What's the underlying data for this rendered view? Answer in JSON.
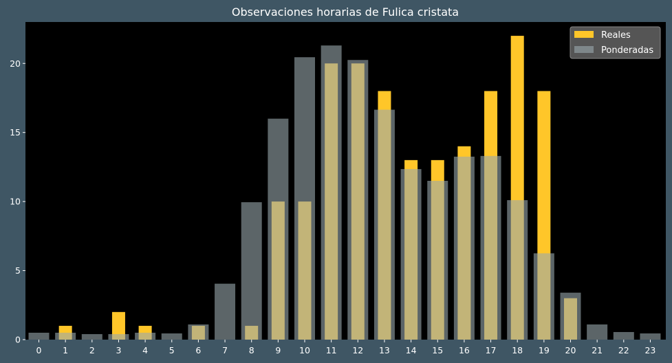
{
  "chart_data": {
    "type": "bar",
    "title": "Observaciones horarias de Fulica cristata",
    "xlabel": "",
    "ylabel": "",
    "categories": [
      "0",
      "1",
      "2",
      "3",
      "4",
      "5",
      "6",
      "7",
      "8",
      "9",
      "10",
      "11",
      "12",
      "13",
      "14",
      "15",
      "16",
      "17",
      "18",
      "19",
      "20",
      "21",
      "22",
      "23"
    ],
    "series": [
      {
        "name": "Reales",
        "color": "#ffc629",
        "values": [
          0,
          1,
          0,
          2,
          1,
          0,
          1,
          0,
          1,
          10,
          10,
          20,
          20,
          18,
          13,
          13,
          14,
          18,
          22,
          18,
          3,
          0,
          0,
          0
        ]
      },
      {
        "name": "Ponderadas",
        "color": "#9aa8ad",
        "values": [
          0.5,
          0.5,
          0.4,
          0.4,
          0.5,
          0.45,
          1.1,
          4.05,
          9.95,
          16.0,
          20.45,
          21.3,
          20.25,
          16.65,
          12.35,
          11.5,
          13.25,
          13.3,
          10.1,
          6.25,
          3.4,
          1.1,
          0.55,
          0.45
        ]
      }
    ],
    "ylim": [
      0,
      23
    ],
    "yticks": [
      0,
      5,
      10,
      15,
      20
    ],
    "grid": false,
    "legend": "top-right",
    "background": "#000000",
    "figure_background": "#3f5664"
  }
}
